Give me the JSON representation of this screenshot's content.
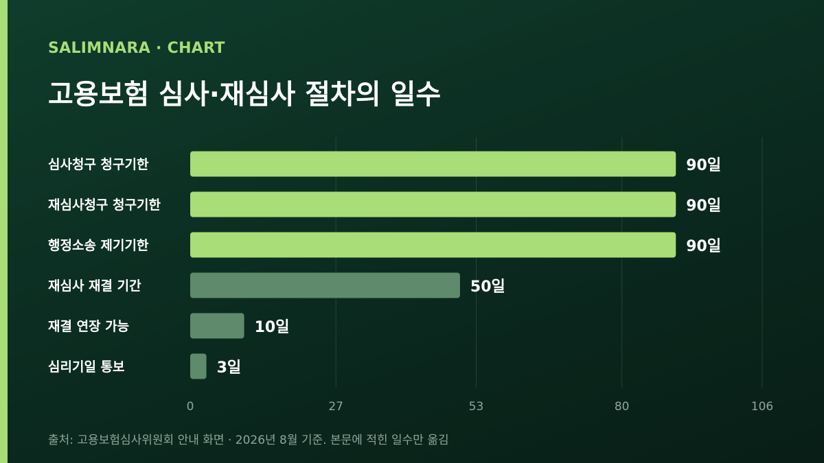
{
  "header": {
    "brand": "SALIMNARA · CHART",
    "title": "고용보험 심사·재심사 절차의 일수"
  },
  "footer": {
    "source": "출처: 고용보험심사위원회 안내 화면 · 2026년 8월 기준. 본문에 적힌 일수만 옮김"
  },
  "colors": {
    "accent": "#a9dd77",
    "muted_bar": "#5f8a6c",
    "background": "#0b2a1f"
  },
  "chart_data": {
    "type": "bar",
    "orientation": "horizontal",
    "title": "고용보험 심사·재심사 절차의 일수",
    "categories": [
      "심사청구 청구기한",
      "재심사청구 청구기한",
      "행정소송 제기기한",
      "재심사 재결 기간",
      "재결 연장 가능",
      "심리기일 통보"
    ],
    "values": [
      90,
      90,
      90,
      50,
      10,
      3
    ],
    "value_labels": [
      "90일",
      "90일",
      "90일",
      "50일",
      "10일",
      "3일"
    ],
    "highlight": [
      true,
      true,
      true,
      false,
      false,
      false
    ],
    "xlim": [
      0,
      106
    ],
    "xticks": [
      0,
      27,
      53,
      80,
      106
    ],
    "xtick_labels": [
      "0",
      "27",
      "53",
      "80",
      "106"
    ],
    "xlabel": "",
    "ylabel": "",
    "grid": true,
    "legend": "none"
  }
}
